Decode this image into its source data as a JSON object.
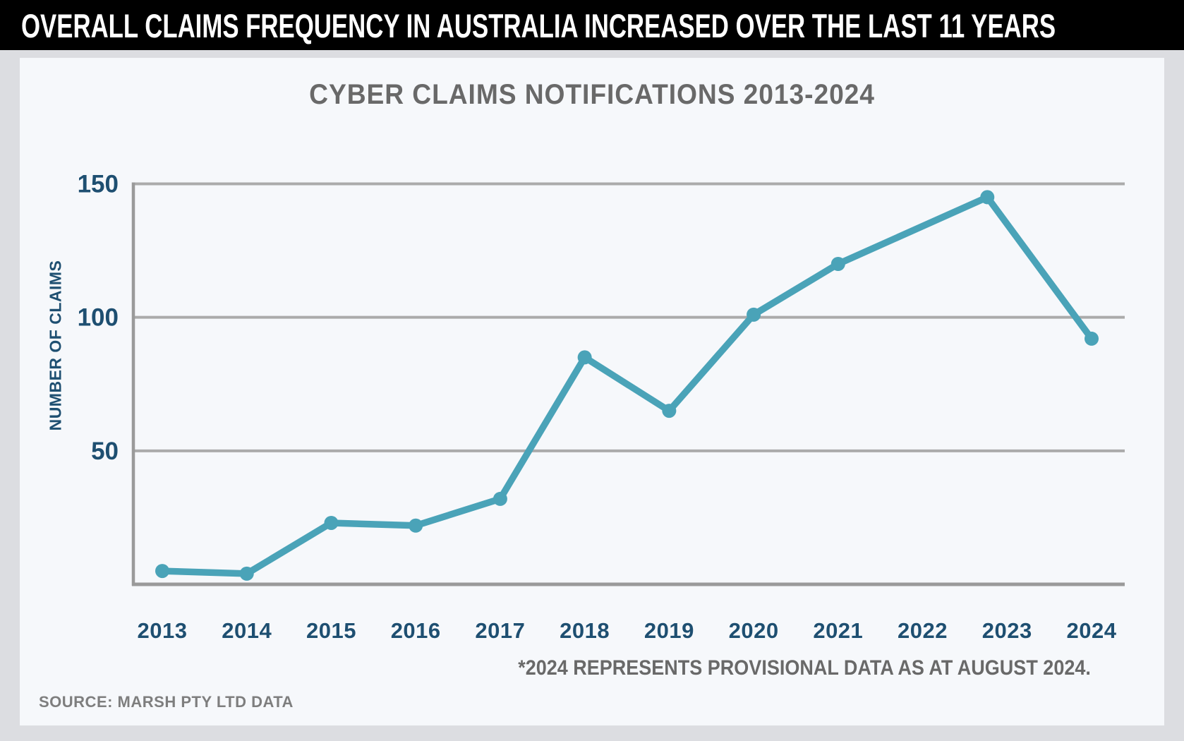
{
  "header": {
    "title": "OVERALL CLAIMS FREQUENCY IN AUSTRALIA INCREASED OVER THE LAST 11 YEARS"
  },
  "chart_data": {
    "type": "line",
    "title": "CYBER CLAIMS NOTIFICATIONS 2013-2024",
    "ylabel": "NUMBER OF CLAIMS",
    "xlabel": "",
    "x_categories": [
      "2013",
      "2014",
      "2015",
      "2016",
      "2017",
      "2018",
      "2019",
      "2020",
      "2021",
      "2022",
      "2023",
      "2024"
    ],
    "points": [
      {
        "year": "2013",
        "value": 5
      },
      {
        "year": "2014",
        "value": 4
      },
      {
        "year": "2015",
        "value": 23
      },
      {
        "year": "2016",
        "value": 22
      },
      {
        "year": "2017",
        "value": 32
      },
      {
        "year": "2018",
        "value": 85
      },
      {
        "year": "2019",
        "value": 65
      },
      {
        "year": "2020",
        "value": 101
      },
      {
        "year": "2021",
        "value": 120
      },
      {
        "year": "2023",
        "value": 145
      },
      {
        "year": "2024",
        "value": 92
      }
    ],
    "note": "no marker is drawn for 2022; the line runs straight from the 2021 point to the 2023 peak",
    "y_ticks": [
      150,
      100,
      50
    ],
    "ylim": [
      0,
      150
    ],
    "grid": "horizontal",
    "legend": "none",
    "footnote": "*2024 REPRESENTS PROVISIONAL DATA AS AT AUGUST 2024.",
    "source": "SOURCE: MARSH PTY LTD DATA",
    "colors": {
      "line": "#4AA3B8",
      "marker": "#4AA3B8",
      "axis_labels": "#1E4F71",
      "gridline": "#ABABAB",
      "axis_line": "#9A9A9A",
      "title": "#696969",
      "footnote": "#696969",
      "source": "#7E7E7E",
      "header_bg": "#000000",
      "header_text": "#FFFFFF",
      "card_bg": "#F6F8FB",
      "page_bg": "#DCDDE1"
    }
  }
}
